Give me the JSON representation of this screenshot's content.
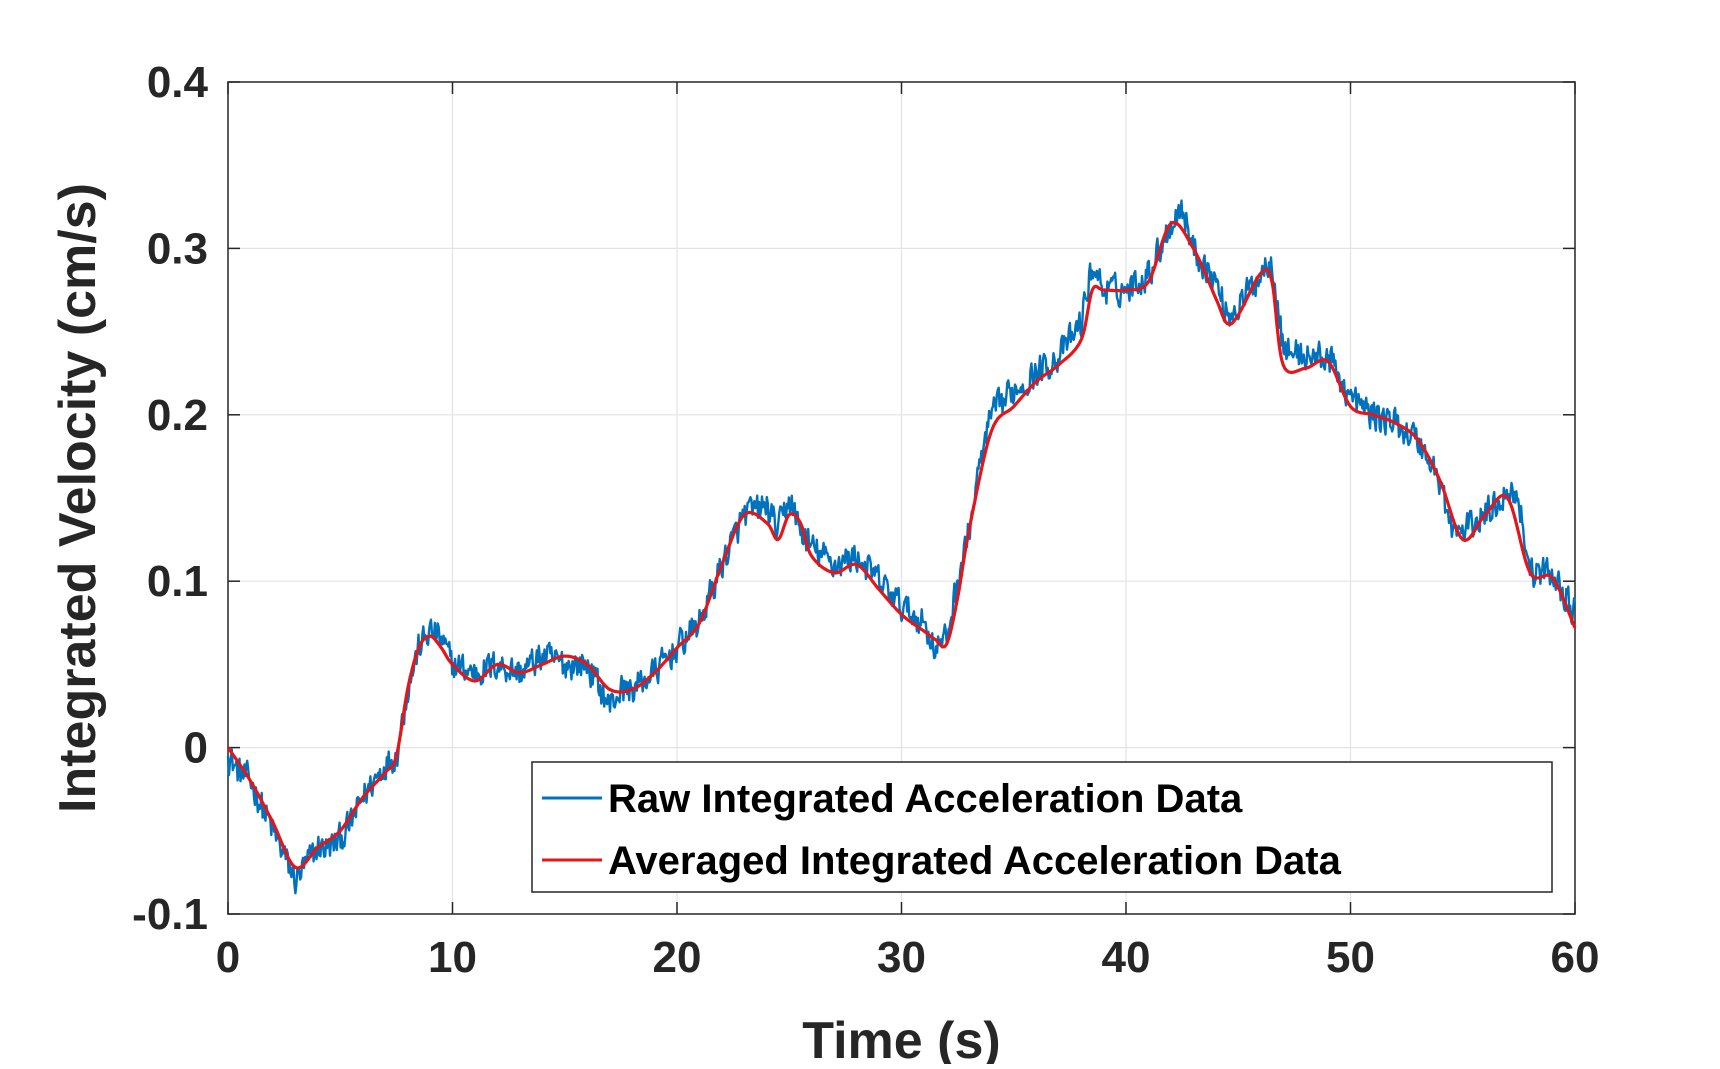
{
  "chart_data": {
    "type": "line",
    "title": "",
    "xlabel": "Time (s)",
    "ylabel": "Integrated Velocity (cm/s)",
    "xlim": [
      0,
      60
    ],
    "ylim": [
      -0.1,
      0.4
    ],
    "xticks": [
      0,
      10,
      20,
      30,
      40,
      50,
      60
    ],
    "xtick_labels": [
      "0",
      "10",
      "20",
      "30",
      "40",
      "50",
      "60"
    ],
    "yticks": [
      -0.1,
      0,
      0.1,
      0.2,
      0.3,
      0.4
    ],
    "ytick_labels": [
      "-0.1",
      "0",
      "0.1",
      "0.2",
      "0.3",
      "0.4"
    ],
    "grid": true,
    "legend_position": "bottom-right",
    "series": [
      {
        "name": "Raw Integrated Acceleration Data",
        "color": "#0072BD",
        "style": "noisy",
        "x": [
          0,
          0.5,
          1,
          1.5,
          2,
          2.5,
          3,
          3.5,
          4,
          4.5,
          5,
          5.5,
          6,
          6.5,
          7,
          7.5,
          8,
          8.5,
          9,
          9.5,
          10,
          11,
          12,
          13,
          14,
          15,
          16,
          17,
          17.5,
          18,
          19,
          20,
          21,
          22,
          23,
          24,
          24.5,
          25,
          25.5,
          26,
          27,
          28,
          29,
          30,
          31,
          31.5,
          32,
          32.5,
          33,
          33.5,
          34,
          35,
          36,
          37,
          38,
          38.5,
          39,
          40,
          41,
          42,
          42.5,
          43,
          44,
          44.5,
          45,
          46,
          46.5,
          47,
          48,
          49,
          50,
          51,
          52,
          53,
          54,
          54.5,
          55,
          56,
          57,
          57.5,
          58,
          59,
          60
        ],
        "y": [
          -0.005,
          -0.015,
          -0.02,
          -0.035,
          -0.05,
          -0.065,
          -0.08,
          -0.07,
          -0.06,
          -0.06,
          -0.055,
          -0.045,
          -0.03,
          -0.02,
          -0.01,
          -0.005,
          0.035,
          0.06,
          0.07,
          0.065,
          0.05,
          0.045,
          0.05,
          0.045,
          0.055,
          0.05,
          0.05,
          0.025,
          0.035,
          0.035,
          0.045,
          0.06,
          0.075,
          0.11,
          0.14,
          0.145,
          0.13,
          0.15,
          0.13,
          0.12,
          0.11,
          0.115,
          0.1,
          0.085,
          0.075,
          0.06,
          0.065,
          0.1,
          0.13,
          0.17,
          0.2,
          0.215,
          0.225,
          0.235,
          0.255,
          0.29,
          0.275,
          0.275,
          0.285,
          0.315,
          0.325,
          0.3,
          0.28,
          0.26,
          0.265,
          0.285,
          0.295,
          0.24,
          0.235,
          0.235,
          0.21,
          0.2,
          0.195,
          0.185,
          0.16,
          0.13,
          0.13,
          0.14,
          0.155,
          0.15,
          0.105,
          0.105,
          0.08
        ]
      },
      {
        "name": "Averaged Integrated Acceleration Data",
        "color": "#E3161B",
        "style": "smooth",
        "x": [
          0,
          1,
          2,
          3,
          4,
          5,
          6,
          7,
          7.5,
          8,
          8.5,
          9,
          9.5,
          10,
          11,
          12,
          13,
          14,
          15,
          16,
          17,
          18,
          19,
          20,
          21,
          22,
          23,
          24,
          24.5,
          25,
          25.5,
          26,
          27,
          28,
          29,
          30,
          31,
          31.5,
          32,
          32.5,
          33,
          34,
          35,
          36,
          37,
          38,
          38.5,
          39,
          40,
          41,
          42,
          43,
          44,
          44.5,
          45,
          46,
          46.5,
          47,
          48,
          49,
          50,
          51,
          52,
          53,
          54,
          55,
          56,
          57,
          58,
          59,
          60
        ],
        "y": [
          0,
          -0.02,
          -0.045,
          -0.072,
          -0.06,
          -0.05,
          -0.03,
          -0.015,
          -0.005,
          0.035,
          0.06,
          0.067,
          0.06,
          0.05,
          0.04,
          0.05,
          0.045,
          0.05,
          0.055,
          0.05,
          0.035,
          0.035,
          0.045,
          0.06,
          0.075,
          0.11,
          0.14,
          0.135,
          0.125,
          0.14,
          0.135,
          0.115,
          0.105,
          0.11,
          0.095,
          0.08,
          0.07,
          0.065,
          0.062,
          0.09,
          0.13,
          0.19,
          0.205,
          0.22,
          0.23,
          0.245,
          0.275,
          0.275,
          0.275,
          0.28,
          0.315,
          0.3,
          0.27,
          0.255,
          0.26,
          0.285,
          0.28,
          0.23,
          0.228,
          0.232,
          0.205,
          0.2,
          0.195,
          0.185,
          0.16,
          0.125,
          0.14,
          0.15,
          0.105,
          0.102,
          0.072
        ]
      }
    ]
  }
}
